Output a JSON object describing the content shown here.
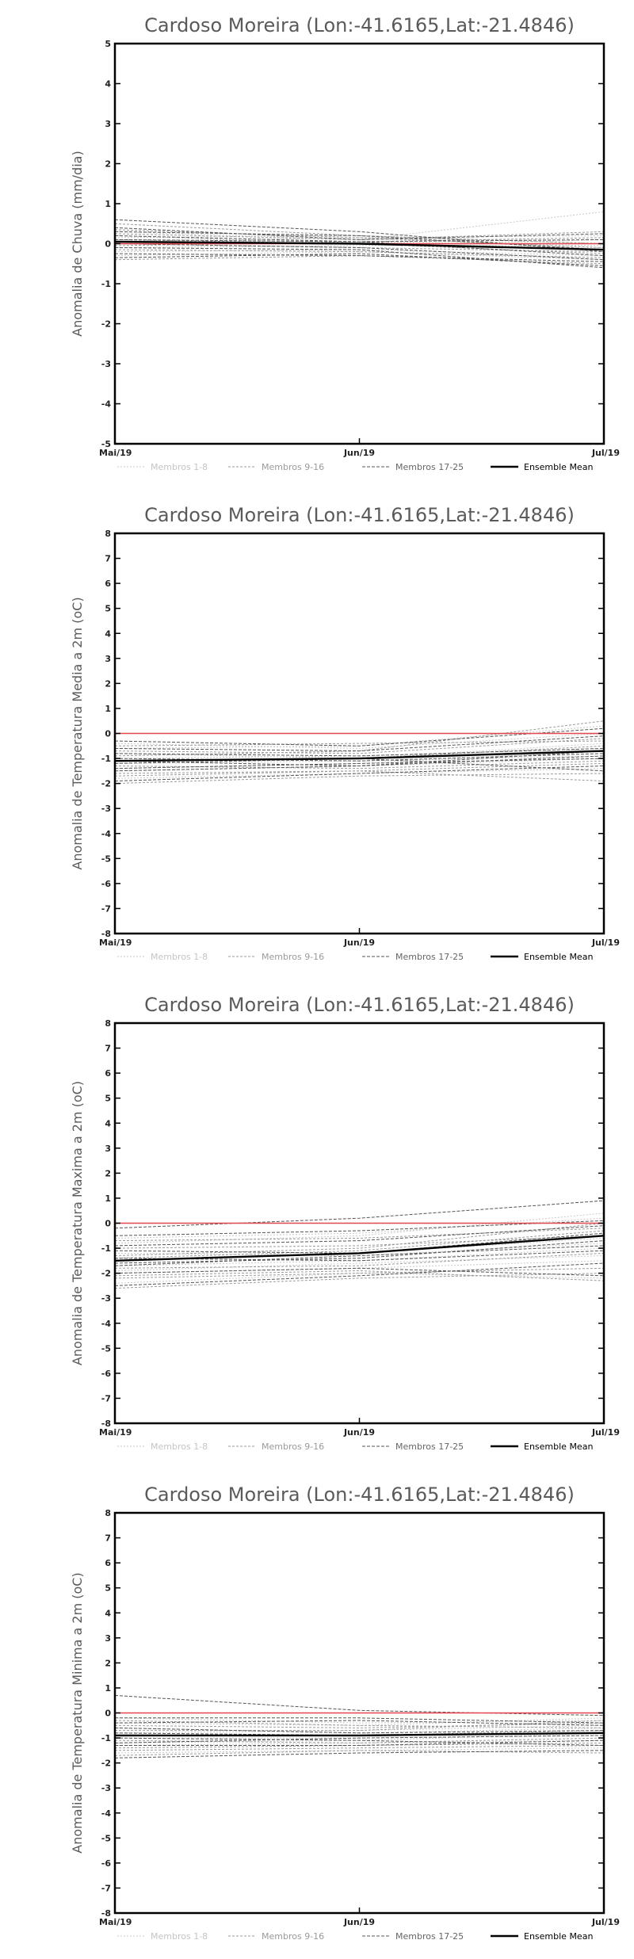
{
  "chart_data": [
    {
      "type": "line",
      "title": "Cardoso Moreira (Lon:-41.6165,Lat:-21.4846)",
      "ylabel": "Anomalia de Chuva (mm/dia)",
      "x": [
        "Mai/19",
        "Jun/19",
        "Jul/19"
      ],
      "ylim": [
        -5,
        5
      ],
      "yticks": [
        -5,
        -4,
        -3,
        -2,
        -1,
        0,
        1,
        2,
        3,
        4,
        5
      ],
      "grid": false,
      "legend": [
        "Membros 1-8",
        "Membros 9-16",
        "Membros 17-25",
        "Ensemble Mean"
      ],
      "legend_placement": "bottom",
      "series": [
        {
          "group": "m1",
          "values": [
            0.1,
            0.05,
            -0.05
          ]
        },
        {
          "group": "m1",
          "values": [
            -0.2,
            -0.15,
            -0.3
          ]
        },
        {
          "group": "m1",
          "values": [
            0.3,
            0.1,
            0.8
          ]
        },
        {
          "group": "m1",
          "values": [
            -0.3,
            -0.2,
            -0.4
          ]
        },
        {
          "group": "m1",
          "values": [
            0.05,
            0.15,
            0.2
          ]
        },
        {
          "group": "m1",
          "values": [
            0.2,
            0.0,
            -0.1
          ]
        },
        {
          "group": "m1",
          "values": [
            -0.1,
            -0.05,
            0.1
          ]
        },
        {
          "group": "m1",
          "values": [
            0.15,
            0.2,
            0.0
          ]
        },
        {
          "group": "m2",
          "values": [
            0.5,
            0.2,
            0.0
          ]
        },
        {
          "group": "m2",
          "values": [
            -0.4,
            -0.3,
            -0.5
          ]
        },
        {
          "group": "m2",
          "values": [
            0.0,
            -0.1,
            -0.2
          ]
        },
        {
          "group": "m2",
          "values": [
            0.25,
            0.1,
            0.3
          ]
        },
        {
          "group": "m2",
          "values": [
            -0.15,
            -0.2,
            -0.35
          ]
        },
        {
          "group": "m2",
          "values": [
            0.1,
            0.0,
            -0.25
          ]
        },
        {
          "group": "m2",
          "values": [
            -0.05,
            0.05,
            0.15
          ]
        },
        {
          "group": "m2",
          "values": [
            0.35,
            0.15,
            -0.1
          ]
        },
        {
          "group": "m3",
          "values": [
            0.6,
            0.3,
            -0.2
          ]
        },
        {
          "group": "m3",
          "values": [
            -0.35,
            -0.25,
            -0.55
          ]
        },
        {
          "group": "m3",
          "values": [
            0.2,
            0.05,
            -0.3
          ]
        },
        {
          "group": "m3",
          "values": [
            -0.25,
            -0.3,
            -0.45
          ]
        },
        {
          "group": "m3",
          "values": [
            0.4,
            0.1,
            0.25
          ]
        },
        {
          "group": "m3",
          "values": [
            0.0,
            -0.1,
            -0.4
          ]
        },
        {
          "group": "m3",
          "values": [
            -0.1,
            -0.15,
            -0.6
          ]
        },
        {
          "group": "m3",
          "values": [
            0.1,
            0.05,
            0.1
          ]
        },
        {
          "group": "m3",
          "values": [
            0.3,
            0.2,
            -0.15
          ]
        },
        {
          "group": "zero",
          "values": [
            0,
            0,
            0
          ]
        },
        {
          "group": "mean",
          "values": [
            0.05,
            0.0,
            -0.15
          ]
        }
      ]
    },
    {
      "type": "line",
      "title": "Cardoso Moreira (Lon:-41.6165,Lat:-21.4846)",
      "ylabel": "Anomalia de Temperatura Media a 2m (oC)",
      "x": [
        "Mai/19",
        "Jun/19",
        "Jul/19"
      ],
      "ylim": [
        -8,
        8
      ],
      "yticks": [
        -8,
        -7,
        -6,
        -5,
        -4,
        -3,
        -2,
        -1,
        0,
        1,
        2,
        3,
        4,
        5,
        6,
        7,
        8
      ],
      "grid": false,
      "legend": [
        "Membros 1-8",
        "Membros 9-16",
        "Membros 17-25",
        "Ensemble Mean"
      ],
      "legend_placement": "bottom",
      "series": [
        {
          "group": "m1",
          "values": [
            -1.0,
            -0.9,
            -0.6
          ]
        },
        {
          "group": "m1",
          "values": [
            -1.5,
            -1.3,
            -1.0
          ]
        },
        {
          "group": "m1",
          "values": [
            -0.6,
            -0.5,
            0.3
          ]
        },
        {
          "group": "m1",
          "values": [
            -1.8,
            -1.6,
            -1.4
          ]
        },
        {
          "group": "m1",
          "values": [
            -0.8,
            -1.0,
            -0.4
          ]
        },
        {
          "group": "m1",
          "values": [
            -1.2,
            -1.1,
            -0.9
          ]
        },
        {
          "group": "m1",
          "values": [
            -0.4,
            -0.6,
            0.0
          ]
        },
        {
          "group": "m1",
          "values": [
            -1.4,
            -1.2,
            -0.7
          ]
        },
        {
          "group": "m2",
          "values": [
            -1.1,
            -1.0,
            -0.5
          ]
        },
        {
          "group": "m2",
          "values": [
            -1.6,
            -1.5,
            -1.2
          ]
        },
        {
          "group": "m2",
          "values": [
            -0.7,
            -0.8,
            -0.2
          ]
        },
        {
          "group": "m2",
          "values": [
            -2.0,
            -1.7,
            -1.6
          ]
        },
        {
          "group": "m2",
          "values": [
            -0.9,
            -0.7,
            0.5
          ]
        },
        {
          "group": "m2",
          "values": [
            -1.3,
            -1.4,
            -1.1
          ]
        },
        {
          "group": "m2",
          "values": [
            -0.5,
            -0.4,
            -0.3
          ]
        },
        {
          "group": "m2",
          "values": [
            -1.7,
            -1.5,
            -1.9
          ]
        },
        {
          "group": "m3",
          "values": [
            -1.0,
            -1.1,
            -0.8
          ]
        },
        {
          "group": "m3",
          "values": [
            -1.9,
            -1.6,
            -1.3
          ]
        },
        {
          "group": "m3",
          "values": [
            -0.3,
            -0.5,
            0.2
          ]
        },
        {
          "group": "m3",
          "values": [
            -1.5,
            -1.3,
            -0.9
          ]
        },
        {
          "group": "m3",
          "values": [
            -0.8,
            -0.9,
            -0.6
          ]
        },
        {
          "group": "m3",
          "values": [
            -1.2,
            -1.0,
            -1.5
          ]
        },
        {
          "group": "m3",
          "values": [
            -0.6,
            -0.7,
            -0.1
          ]
        },
        {
          "group": "m3",
          "values": [
            -1.4,
            -1.2,
            -1.0
          ]
        },
        {
          "group": "m3",
          "values": [
            -1.1,
            -1.3,
            -0.7
          ]
        },
        {
          "group": "zero",
          "values": [
            0,
            0,
            0
          ]
        },
        {
          "group": "mean",
          "values": [
            -1.1,
            -1.0,
            -0.7
          ]
        }
      ]
    },
    {
      "type": "line",
      "title": "Cardoso Moreira (Lon:-41.6165,Lat:-21.4846)",
      "ylabel": "Anomalia de Temperatura Maxima a 2m (oC)",
      "x": [
        "Mai/19",
        "Jun/19",
        "Jul/19"
      ],
      "ylim": [
        -8,
        8
      ],
      "yticks": [
        -8,
        -7,
        -6,
        -5,
        -4,
        -3,
        -2,
        -1,
        0,
        1,
        2,
        3,
        4,
        5,
        6,
        7,
        8
      ],
      "grid": false,
      "legend": [
        "Membros 1-8",
        "Membros 9-16",
        "Membros 17-25",
        "Ensemble Mean"
      ],
      "legend_placement": "bottom",
      "series": [
        {
          "group": "m1",
          "values": [
            -1.5,
            -1.2,
            -0.6
          ]
        },
        {
          "group": "m1",
          "values": [
            -2.0,
            -1.8,
            -1.5
          ]
        },
        {
          "group": "m1",
          "values": [
            -0.8,
            -0.5,
            0.4
          ]
        },
        {
          "group": "m1",
          "values": [
            -2.4,
            -2.0,
            -2.2
          ]
        },
        {
          "group": "m1",
          "values": [
            -1.2,
            -1.3,
            -0.8
          ]
        },
        {
          "group": "m1",
          "values": [
            -1.7,
            -1.5,
            -1.0
          ]
        },
        {
          "group": "m1",
          "values": [
            -0.6,
            -0.4,
            0.2
          ]
        },
        {
          "group": "m1",
          "values": [
            -1.9,
            -1.6,
            -1.3
          ]
        },
        {
          "group": "m2",
          "values": [
            -1.4,
            -1.1,
            -0.3
          ]
        },
        {
          "group": "m2",
          "values": [
            -2.2,
            -2.0,
            -1.8
          ]
        },
        {
          "group": "m2",
          "values": [
            -1.0,
            -0.9,
            -0.5
          ]
        },
        {
          "group": "m2",
          "values": [
            -2.6,
            -2.2,
            -2.0
          ]
        },
        {
          "group": "m2",
          "values": [
            -1.3,
            -1.0,
            0.0
          ]
        },
        {
          "group": "m2",
          "values": [
            -1.8,
            -1.7,
            -1.2
          ]
        },
        {
          "group": "m2",
          "values": [
            -0.7,
            -0.6,
            -0.2
          ]
        },
        {
          "group": "m2",
          "values": [
            -2.1,
            -1.9,
            -2.3
          ]
        },
        {
          "group": "m3",
          "values": [
            -0.2,
            0.2,
            0.9
          ]
        },
        {
          "group": "m3",
          "values": [
            -2.5,
            -2.1,
            -1.6
          ]
        },
        {
          "group": "m3",
          "values": [
            -0.9,
            -0.7,
            -0.1
          ]
        },
        {
          "group": "m3",
          "values": [
            -1.6,
            -1.4,
            -0.7
          ]
        },
        {
          "group": "m3",
          "values": [
            -1.1,
            -1.2,
            -0.4
          ]
        },
        {
          "group": "m3",
          "values": [
            -2.0,
            -1.8,
            -2.1
          ]
        },
        {
          "group": "m3",
          "values": [
            -1.4,
            -1.5,
            -1.1
          ]
        },
        {
          "group": "m3",
          "values": [
            -0.5,
            -0.3,
            0.1
          ]
        },
        {
          "group": "m3",
          "values": [
            -1.7,
            -1.3,
            -0.9
          ]
        },
        {
          "group": "zero",
          "values": [
            0,
            0,
            0
          ]
        },
        {
          "group": "mean",
          "values": [
            -1.5,
            -1.2,
            -0.5
          ]
        }
      ]
    },
    {
      "type": "line",
      "title": "Cardoso Moreira (Lon:-41.6165,Lat:-21.4846)",
      "ylabel": "Anomalia de Temperatura Minima a 2m (oC)",
      "x": [
        "Mai/19",
        "Jun/19",
        "Jul/19"
      ],
      "ylim": [
        -8,
        8
      ],
      "yticks": [
        -8,
        -7,
        -6,
        -5,
        -4,
        -3,
        -2,
        -1,
        0,
        1,
        2,
        3,
        4,
        5,
        6,
        7,
        8
      ],
      "grid": false,
      "legend": [
        "Membros 1-8",
        "Membros 9-16",
        "Membros 17-25",
        "Ensemble Mean"
      ],
      "legend_placement": "bottom",
      "series": [
        {
          "group": "m1",
          "values": [
            -0.8,
            -0.7,
            -0.5
          ]
        },
        {
          "group": "m1",
          "values": [
            -1.3,
            -1.2,
            -1.1
          ]
        },
        {
          "group": "m1",
          "values": [
            -0.4,
            -0.5,
            -0.2
          ]
        },
        {
          "group": "m1",
          "values": [
            -1.6,
            -1.5,
            -1.4
          ]
        },
        {
          "group": "m1",
          "values": [
            -0.6,
            -0.8,
            -0.6
          ]
        },
        {
          "group": "m1",
          "values": [
            -1.0,
            -1.0,
            -0.9
          ]
        },
        {
          "group": "m1",
          "values": [
            -0.2,
            -0.4,
            -0.3
          ]
        },
        {
          "group": "m1",
          "values": [
            -1.2,
            -1.1,
            -0.8
          ]
        },
        {
          "group": "m2",
          "values": [
            -0.9,
            -0.9,
            -0.7
          ]
        },
        {
          "group": "m2",
          "values": [
            -1.4,
            -1.3,
            -1.2
          ]
        },
        {
          "group": "m2",
          "values": [
            -0.5,
            -0.6,
            -0.4
          ]
        },
        {
          "group": "m2",
          "values": [
            -1.7,
            -1.5,
            -1.6
          ]
        },
        {
          "group": "m2",
          "values": [
            -0.7,
            -0.7,
            -0.3
          ]
        },
        {
          "group": "m2",
          "values": [
            -1.1,
            -1.2,
            -1.0
          ]
        },
        {
          "group": "m2",
          "values": [
            -0.3,
            -0.5,
            -0.6
          ]
        },
        {
          "group": "m2",
          "values": [
            -1.5,
            -1.4,
            -1.3
          ]
        },
        {
          "group": "m3",
          "values": [
            0.7,
            0.1,
            -0.1
          ]
        },
        {
          "group": "m3",
          "values": [
            -1.8,
            -1.6,
            -1.5
          ]
        },
        {
          "group": "m3",
          "values": [
            -0.4,
            -0.3,
            -0.5
          ]
        },
        {
          "group": "m3",
          "values": [
            -1.2,
            -1.0,
            -0.9
          ]
        },
        {
          "group": "m3",
          "values": [
            -0.6,
            -0.8,
            -0.7
          ]
        },
        {
          "group": "m3",
          "values": [
            -1.0,
            -1.1,
            -1.3
          ]
        },
        {
          "group": "m3",
          "values": [
            -0.2,
            -0.2,
            -0.4
          ]
        },
        {
          "group": "m3",
          "values": [
            -1.3,
            -1.3,
            -1.1
          ]
        },
        {
          "group": "m3",
          "values": [
            -0.8,
            -0.9,
            -0.8
          ]
        },
        {
          "group": "zero",
          "values": [
            0,
            0,
            0
          ]
        },
        {
          "group": "mean",
          "values": [
            -0.9,
            -0.9,
            -0.8
          ]
        }
      ]
    }
  ],
  "colors": {
    "axis": "#000000",
    "m1": "#c8c8c8",
    "m2": "#9a9a9a",
    "m3": "#555555",
    "zero": "#e0484e",
    "mean": "#000000"
  }
}
